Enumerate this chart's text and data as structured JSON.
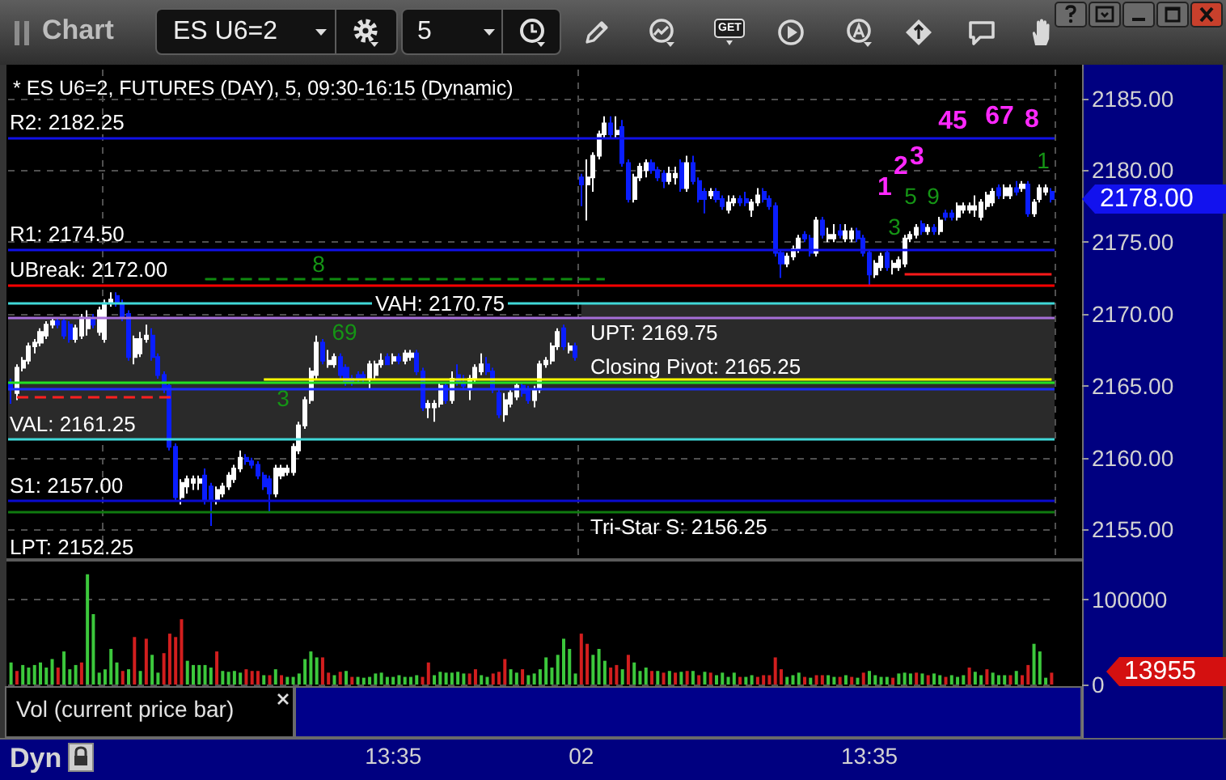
{
  "chart_data": [
    {
      "type": "candlestick",
      "title": "* ES U6=2, FUTURES (DAY), 5, 09:30-16:15 (Dynamic)",
      "categories": [
        null,
        null,
        null,
        null,
        null,
        null,
        null,
        null,
        null,
        null,
        null,
        null,
        null,
        null,
        null,
        null,
        null,
        null,
        null,
        null,
        null,
        null,
        null,
        null,
        null,
        null,
        null,
        null,
        null,
        null,
        null,
        null,
        null,
        null,
        null,
        null,
        null,
        null,
        null,
        null,
        null,
        null,
        null,
        null,
        null,
        null,
        null,
        null,
        null,
        null,
        null,
        null,
        null,
        null,
        null,
        null,
        null,
        null,
        null,
        null,
        null,
        null,
        null,
        null,
        null,
        null,
        null,
        null,
        null,
        null,
        null,
        null,
        null,
        null,
        null,
        null,
        null,
        null,
        null,
        null,
        null,
        null,
        null,
        null,
        null,
        null,
        null,
        null,
        null,
        null,
        null,
        null,
        null,
        null,
        null,
        null,
        null,
        null,
        null,
        null,
        null,
        null,
        null,
        null,
        null,
        null,
        null,
        null,
        null,
        null,
        null,
        null,
        null,
        null,
        null,
        null,
        null,
        null,
        null,
        null,
        null,
        null,
        null,
        null,
        null,
        null,
        null,
        null,
        null,
        null,
        null,
        null,
        null,
        null,
        null,
        null,
        null,
        null,
        null,
        null,
        null,
        null,
        null,
        null,
        null,
        null,
        null,
        null,
        null,
        null,
        null,
        null,
        null,
        null,
        null,
        null,
        null,
        null,
        null,
        null,
        null,
        null,
        null,
        null,
        null,
        null,
        null,
        null,
        null,
        null,
        null,
        null,
        null,
        null,
        null,
        null,
        null,
        null
      ],
      "ohlc": [
        [
          2165.25,
          2165.5,
          2163.75,
          2164.75
        ],
        [
          2164.5,
          2166.5,
          2164,
          2166.25
        ],
        [
          2166.25,
          2167,
          2166,
          2166.75
        ],
        [
          2166.75,
          2168,
          2166.5,
          2167.75
        ],
        [
          2167.75,
          2168.25,
          2167.25,
          2168
        ],
        [
          2168,
          2169,
          2167.75,
          2168.75
        ],
        [
          2168.5,
          2169.5,
          2168.25,
          2169.25
        ],
        [
          2169.25,
          2169.75,
          2169,
          2169.5
        ],
        [
          2169.5,
          2169.75,
          2169,
          2169.25
        ],
        [
          2169.5,
          2169.75,
          2168.25,
          2168.5
        ],
        [
          2169.25,
          2169.5,
          2168,
          2168.25
        ],
        [
          2168.25,
          2169.25,
          2168,
          2169
        ],
        [
          2168.5,
          2170,
          2168.25,
          2169.75
        ],
        [
          2169,
          2170.25,
          2168.5,
          2169.75
        ],
        [
          2169.75,
          2170,
          2169,
          2169.25
        ],
        [
          2168.75,
          2170.5,
          2168.5,
          2170.25
        ],
        [
          2168.25,
          2171,
          2168,
          2170.75
        ],
        [
          2170.75,
          2171.5,
          2170.5,
          2171
        ],
        [
          2171.25,
          2171.5,
          2170.5,
          2170.75
        ],
        [
          2170.75,
          2171,
          2169.5,
          2169.75
        ],
        [
          2170,
          2170.25,
          2166.75,
          2167
        ],
        [
          2167,
          2168.5,
          2166.5,
          2168.25
        ],
        [
          2167.25,
          2168.75,
          2167,
          2168.25
        ],
        [
          2168.25,
          2169.25,
          2168,
          2168.5
        ],
        [
          2168.5,
          2169,
          2166.75,
          2167
        ],
        [
          2167,
          2167.25,
          2165.5,
          2165.75
        ],
        [
          2165.75,
          2166,
          2164.5,
          2164.75
        ],
        [
          2165,
          2165.25,
          2160.5,
          2160.75
        ],
        [
          2160.75,
          2161,
          2157,
          2157.25
        ],
        [
          2157.25,
          2158.5,
          2156.75,
          2158.25
        ],
        [
          2158,
          2158.75,
          2157.5,
          2158.5
        ],
        [
          2158.25,
          2158.75,
          2157.75,
          2158.5
        ],
        [
          2158.25,
          2158.75,
          2157.75,
          2158.5
        ],
        [
          2158.75,
          2159.25,
          2156.75,
          2157
        ],
        [
          2158,
          2158.25,
          2155.25,
          2157
        ],
        [
          2157,
          2158,
          2156.75,
          2157.75
        ],
        [
          2157.5,
          2158.25,
          2157.25,
          2158
        ],
        [
          2158,
          2159,
          2157.75,
          2158.75
        ],
        [
          2158.5,
          2159.5,
          2158.25,
          2159.25
        ],
        [
          2159.25,
          2160.5,
          2159,
          2160
        ],
        [
          2160,
          2160.25,
          2159.5,
          2159.75
        ],
        [
          2159.75,
          2160,
          2159.25,
          2159.5
        ],
        [
          2159.5,
          2159.75,
          2158.5,
          2158.75
        ],
        [
          2158.75,
          2159,
          2157.75,
          2158
        ],
        [
          2158.5,
          2158.75,
          2156.25,
          2157.5
        ],
        [
          2157.5,
          2159.5,
          2157.25,
          2159.25
        ],
        [
          2158.75,
          2159.5,
          2158.5,
          2159.25
        ],
        [
          2159,
          2159.5,
          2158.75,
          2159.25
        ],
        [
          2159,
          2161,
          2158.75,
          2160.75
        ],
        [
          2160.5,
          2162.5,
          2160.25,
          2162.25
        ],
        [
          2162.25,
          2164.25,
          2162,
          2164
        ],
        [
          2164,
          2166.25,
          2163.75,
          2166
        ],
        [
          2165.75,
          2168.5,
          2165.5,
          2168
        ],
        [
          2168,
          2168.25,
          2166.5,
          2166.75
        ],
        [
          2166.5,
          2167.5,
          2166.25,
          2166.75
        ],
        [
          2166.5,
          2167.25,
          2166.25,
          2167
        ],
        [
          2167,
          2167.25,
          2165.5,
          2165.75
        ],
        [
          2166.25,
          2166.5,
          2165,
          2165.25
        ],
        [
          2165.5,
          2165.75,
          2165,
          2165.25
        ],
        [
          2165.75,
          2166,
          2165.25,
          2165.5
        ],
        [
          2165.75,
          2166,
          2165.25,
          2165.5
        ],
        [
          2165.5,
          2166.75,
          2164.75,
          2166.5
        ],
        [
          2165.75,
          2166.75,
          2165.5,
          2166.5
        ],
        [
          2166.5,
          2167.25,
          2166.25,
          2166.75
        ],
        [
          2167,
          2167.25,
          2166.5,
          2166.5
        ],
        [
          2166.75,
          2167.25,
          2166.5,
          2167
        ],
        [
          2167,
          2167.25,
          2166.5,
          2166.75
        ],
        [
          2166.75,
          2167.5,
          2166.5,
          2167.25
        ],
        [
          2167,
          2167.5,
          2166.75,
          2167.25
        ],
        [
          2167.25,
          2167.5,
          2165.75,
          2166
        ],
        [
          2166,
          2166.25,
          2163.25,
          2163.5
        ],
        [
          2163.5,
          2164,
          2162.75,
          2163.75
        ],
        [
          2163.5,
          2164,
          2162.5,
          2163.75
        ],
        [
          2163.75,
          2165.25,
          2163.5,
          2165
        ],
        [
          2165,
          2165.25,
          2163.75,
          2164
        ],
        [
          2164,
          2166,
          2163.75,
          2165.5
        ],
        [
          2165.75,
          2166.5,
          2165,
          2165.25
        ],
        [
          2165.25,
          2165.75,
          2164.75,
          2165
        ],
        [
          2164.75,
          2165.75,
          2164,
          2165.5
        ],
        [
          2165.5,
          2166.5,
          2165.25,
          2166.25
        ],
        [
          2166,
          2167.25,
          2165.75,
          2166.5
        ],
        [
          2166.5,
          2167,
          2165.75,
          2166
        ],
        [
          2166,
          2166.25,
          2164.5,
          2164.75
        ],
        [
          2164.5,
          2164.75,
          2162.75,
          2163
        ],
        [
          2163,
          2164.5,
          2162.5,
          2164
        ],
        [
          2163.75,
          2164.75,
          2163.5,
          2164.5
        ],
        [
          2164.25,
          2165.25,
          2164,
          2165
        ],
        [
          2165,
          2165.25,
          2164.25,
          2164.5
        ],
        [
          2164.75,
          2165,
          2163.75,
          2164
        ],
        [
          2164,
          2165,
          2163.5,
          2164.75
        ],
        [
          2164.75,
          2166.75,
          2164.5,
          2166.5
        ],
        [
          2166.5,
          2167,
          2166.25,
          2166.75
        ],
        [
          2166.75,
          2168,
          2166.5,
          2167.75
        ],
        [
          2167.75,
          2169,
          2167.5,
          2168.75
        ],
        [
          2169,
          2169.25,
          2167.5,
          2167.75
        ],
        [
          2167.5,
          2168,
          2167.25,
          2167.75
        ],
        [
          2167.75,
          2168,
          2166.75,
          2167
        ],
        [
          2179.5,
          2179.75,
          2177.5,
          2179
        ],
        [
          2179,
          2180.75,
          2176.5,
          2179.5
        ],
        [
          2179.5,
          2181.25,
          2178.5,
          2181
        ],
        [
          2181,
          2182.75,
          2180.75,
          2182.5
        ],
        [
          2182.5,
          2183.75,
          2182.25,
          2183.25
        ],
        [
          2183.25,
          2183.75,
          2182.25,
          2182.5
        ],
        [
          2182.5,
          2183.75,
          2182.25,
          2182.75
        ],
        [
          2183,
          2183.5,
          2180.25,
          2180.5
        ],
        [
          2180.5,
          2180.75,
          2177.75,
          2178
        ],
        [
          2178,
          2179.75,
          2177.75,
          2179.5
        ],
        [
          2179.5,
          2180.5,
          2179.25,
          2180.25
        ],
        [
          2180,
          2180.75,
          2179.5,
          2180.5
        ],
        [
          2180.5,
          2180.75,
          2179.75,
          2180
        ],
        [
          2180,
          2180.25,
          2179.25,
          2179.5
        ],
        [
          2179.75,
          2180,
          2178.75,
          2179.25
        ],
        [
          2179.25,
          2180.25,
          2179,
          2179.75
        ],
        [
          2179.5,
          2180.25,
          2179,
          2179.75
        ],
        [
          2180.5,
          2180.75,
          2178.5,
          2178.75
        ],
        [
          2178.75,
          2181,
          2178.5,
          2180.5
        ],
        [
          2180.5,
          2181,
          2179,
          2179.25
        ],
        [
          2179.25,
          2179.5,
          2177.75,
          2178
        ],
        [
          2178.5,
          2178.75,
          2177,
          2178
        ],
        [
          2178.25,
          2178.75,
          2178,
          2178.5
        ],
        [
          2178.5,
          2178.75,
          2177.75,
          2178
        ],
        [
          2178,
          2178.25,
          2177.25,
          2177.5
        ],
        [
          2177.25,
          2178.25,
          2177,
          2177.75
        ],
        [
          2177.75,
          2178.25,
          2177.5,
          2178
        ],
        [
          2178,
          2178.25,
          2177.5,
          2177.75
        ],
        [
          2178,
          2178.5,
          2177.5,
          2177.75
        ],
        [
          2177.25,
          2178,
          2176.75,
          2177.75
        ],
        [
          2177.75,
          2178.75,
          2177.5,
          2178.25
        ],
        [
          2178.5,
          2178.75,
          2177.75,
          2178
        ],
        [
          2178,
          2178.25,
          2177.25,
          2177.5
        ],
        [
          2177.5,
          2177.75,
          2174,
          2174.25
        ],
        [
          2174.25,
          2174.5,
          2172.5,
          2173.5
        ],
        [
          2173.5,
          2174.25,
          2173.25,
          2174
        ],
        [
          2174,
          2174.75,
          2173.75,
          2174.5
        ],
        [
          2174.5,
          2175.5,
          2174.25,
          2175.25
        ],
        [
          2175.5,
          2175.75,
          2175,
          2175.25
        ],
        [
          2175.25,
          2175.5,
          2174,
          2174.25
        ],
        [
          2174.25,
          2176.75,
          2174,
          2176.5
        ],
        [
          2176.5,
          2176.75,
          2175.25,
          2175.5
        ],
        [
          2175.25,
          2176,
          2175,
          2175.5
        ],
        [
          2175.25,
          2176.25,
          2175,
          2175.5
        ],
        [
          2175.75,
          2176.25,
          2175.25,
          2175.5
        ],
        [
          2175.25,
          2176.25,
          2175,
          2175.75
        ],
        [
          2175.25,
          2176,
          2175,
          2175.75
        ],
        [
          2175.75,
          2176,
          2175,
          2175.25
        ],
        [
          2175.25,
          2175.5,
          2174,
          2174.25
        ],
        [
          2174.25,
          2174.5,
          2172,
          2172.75
        ],
        [
          2172.75,
          2173.75,
          2172.5,
          2173.5
        ],
        [
          2173.25,
          2174.25,
          2173,
          2174
        ],
        [
          2174.25,
          2174.5,
          2173,
          2173.25
        ],
        [
          2173.25,
          2173.75,
          2172.75,
          2173.5
        ],
        [
          2173.25,
          2174,
          2173,
          2173.75
        ],
        [
          2173.5,
          2175.5,
          2173.25,
          2175.25
        ],
        [
          2175.25,
          2175.75,
          2175,
          2175.5
        ],
        [
          2175.5,
          2176.25,
          2175.25,
          2176
        ],
        [
          2176.25,
          2176.5,
          2175.5,
          2175.75
        ],
        [
          2175.75,
          2176.25,
          2175.5,
          2176
        ],
        [
          2176,
          2176.25,
          2175.5,
          2175.75
        ],
        [
          2175.75,
          2176.75,
          2175.5,
          2176.5
        ],
        [
          2177,
          2177.25,
          2176.5,
          2176.75
        ],
        [
          2177,
          2177.25,
          2176.5,
          2176.75
        ],
        [
          2176.75,
          2177.75,
          2176.5,
          2177.5
        ],
        [
          2177.25,
          2177.75,
          2177,
          2177.5
        ],
        [
          2177.25,
          2177.75,
          2177,
          2177.5
        ],
        [
          2177.25,
          2178.25,
          2176.75,
          2177.5
        ],
        [
          2176.75,
          2178,
          2176.5,
          2177.75
        ],
        [
          2177.5,
          2178.5,
          2177.25,
          2178.25
        ],
        [
          2177.75,
          2178.75,
          2177.5,
          2178.5
        ],
        [
          2178.75,
          2179,
          2178,
          2178.25
        ],
        [
          2178.25,
          2179,
          2178,
          2178.75
        ],
        [
          2178.25,
          2179,
          2178,
          2178.75
        ],
        [
          2178.75,
          2179.25,
          2178.25,
          2178.5
        ],
        [
          2178.75,
          2179.25,
          2178.5,
          2179
        ],
        [
          2179,
          2179.25,
          2176.75,
          2177
        ],
        [
          2177,
          2178,
          2176.75,
          2177.75
        ],
        [
          2178,
          2179,
          2177.75,
          2178.75
        ],
        [
          2178.5,
          2179,
          2178.25,
          2178.75
        ],
        [
          2178.5,
          2178.75,
          2177.75,
          2178
        ]
      ],
      "colors": [
        "#0a1eff",
        "#ffffff",
        "#ffffff",
        "#ffffff",
        "#ffffff",
        "#ffffff",
        "#ffffff",
        "#ffffff",
        "#0a1eff",
        "#0a1eff",
        "#0a1eff",
        "#ffffff",
        "#ffffff",
        "#ffffff",
        "#0a1eff",
        "#ffffff",
        "#ffffff",
        "#ffffff",
        "#0a1eff",
        "#0a1eff",
        "#0a1eff",
        "#ffffff",
        "#ffffff",
        "#ffffff",
        "#0a1eff",
        "#0a1eff",
        "#0a1eff",
        "#0a1eff",
        "#0a1eff",
        "#ffffff",
        "#ffffff",
        "#ffffff",
        "#ffffff",
        "#0a1eff",
        "#0a1eff",
        "#ffffff",
        "#ffffff",
        "#ffffff",
        "#ffffff",
        "#ffffff",
        "#0a1eff",
        "#0a1eff",
        "#0a1eff",
        "#0a1eff",
        "#0a1eff",
        "#ffffff",
        "#ffffff",
        "#ffffff",
        "#ffffff",
        "#ffffff",
        "#ffffff",
        "#ffffff",
        "#ffffff",
        "#0a1eff",
        "#ffffff",
        "#ffffff",
        "#0a1eff",
        "#0a1eff",
        "#0a1eff",
        "#0a1eff",
        "#0a1eff",
        "#ffffff",
        "#ffffff",
        "#ffffff",
        "#0a1eff",
        "#ffffff",
        "#0a1eff",
        "#ffffff",
        "#ffffff",
        "#0a1eff",
        "#0a1eff",
        "#ffffff",
        "#ffffff",
        "#ffffff",
        "#0a1eff",
        "#ffffff",
        "#0a1eff",
        "#0a1eff",
        "#ffffff",
        "#ffffff",
        "#ffffff",
        "#0a1eff",
        "#0a1eff",
        "#0a1eff",
        "#ffffff",
        "#ffffff",
        "#ffffff",
        "#0a1eff",
        "#0a1eff",
        "#ffffff",
        "#ffffff",
        "#ffffff",
        "#ffffff",
        "#ffffff",
        "#0a1eff",
        "#ffffff",
        "#0a1eff",
        "#0a1eff",
        "#ffffff",
        "#ffffff",
        "#ffffff",
        "#ffffff",
        "#0a1eff",
        "#ffffff",
        "#0a1eff",
        "#0a1eff",
        "#ffffff",
        "#ffffff",
        "#ffffff",
        "#0a1eff",
        "#0a1eff",
        "#0a1eff",
        "#ffffff",
        "#ffffff",
        "#0a1eff",
        "#ffffff",
        "#0a1eff",
        "#0a1eff",
        "#0a1eff",
        "#ffffff",
        "#0a1eff",
        "#0a1eff",
        "#ffffff",
        "#ffffff",
        "#0a1eff",
        "#0a1eff",
        "#ffffff",
        "#ffffff",
        "#0a1eff",
        "#0a1eff",
        "#0a1eff",
        "#0a1eff",
        "#ffffff",
        "#ffffff",
        "#ffffff",
        "#0a1eff",
        "#0a1eff",
        "#ffffff",
        "#0a1eff",
        "#ffffff",
        "#ffffff",
        "#0a1eff",
        "#ffffff",
        "#ffffff",
        "#0a1eff",
        "#0a1eff",
        "#0a1eff",
        "#ffffff",
        "#ffffff",
        "#0a1eff",
        "#ffffff",
        "#ffffff",
        "#ffffff",
        "#ffffff",
        "#ffffff",
        "#0a1eff",
        "#ffffff",
        "#0a1eff",
        "#ffffff",
        "#0a1eff",
        "#0a1eff",
        "#ffffff",
        "#ffffff",
        "#ffffff",
        "#ffffff",
        "#ffffff",
        "#ffffff",
        "#ffffff",
        "#0a1eff",
        "#ffffff",
        "#ffffff",
        "#0a1eff",
        "#ffffff",
        "#0a1eff",
        "#ffffff",
        "#ffffff",
        "#ffffff",
        "#0a1eff"
      ],
      "ylim": [
        2153,
        2187
      ],
      "yticks": [
        {
          "value": 2155,
          "label": "2155.00"
        },
        {
          "value": 2160,
          "label": "2160.00"
        },
        {
          "value": 2165,
          "label": "2165.00"
        },
        {
          "value": 2170,
          "label": "2170.00"
        },
        {
          "value": 2175,
          "label": "2175.00"
        },
        {
          "value": 2180,
          "label": "2180.00"
        },
        {
          "value": 2185,
          "label": "2185.00"
        }
      ],
      "grid": true,
      "tick_labels": "y",
      "ref_lines": [
        {
          "axis": "y",
          "value": 2182.25,
          "label": "R2: 2182.25",
          "color": "#1010e8"
        },
        {
          "axis": "y",
          "value": 2174.5,
          "label": "R1: 2174.50",
          "color": "#1010e8"
        },
        {
          "axis": "y",
          "value": 2172,
          "label": "UBreak: 2172.00",
          "color": "#ff0000"
        },
        {
          "axis": "y",
          "value": 2170.75,
          "label": "VAH: 2170.75",
          "color": "#40d8d8"
        },
        {
          "axis": "y",
          "value": 2169.75,
          "label": "UPT: 2169.75",
          "color": "#a66ed8"
        },
        {
          "axis": "y",
          "value": 2165.25,
          "label": "Closing Pivot: 2165.25",
          "color": "#22e022"
        },
        {
          "axis": "y",
          "value": 2161.25,
          "label": "VAL: 2161.25",
          "color": "#40d8d8"
        },
        {
          "axis": "y",
          "value": 2157,
          "label": "S1: 2157.00",
          "color": "#0a0ad0"
        },
        {
          "axis": "y",
          "value": 2156.25,
          "label": "Tri-Star S: 2156.25",
          "color": "#0f7a0f"
        },
        {
          "axis": "y",
          "value": 2172.5,
          "color": "#0f8a0f",
          "line_style": "dashed"
        },
        {
          "axis": "y",
          "value": 2172.75,
          "color": "#ff1a1a"
        },
        {
          "axis": "y",
          "value": 2165.5,
          "color": "#ffff00"
        },
        {
          "axis": "y",
          "value": 2164.75,
          "color": "#1a2cff"
        },
        {
          "axis": "y",
          "value": 2164.25,
          "color": "#ff2020",
          "line_style": "dashed"
        }
      ],
      "bands": [
        {
          "axis": "y",
          "from": 2161.25,
          "to": 2169.75,
          "color": "#2a2a2a"
        },
        {
          "axis": "y",
          "from": 2169.75,
          "to": 2170.75,
          "color": "#2a2a2a"
        }
      ],
      "annotations": [
        "Chart",
        "ES U6=2",
        "5",
        "GET",
        "2178.00",
        "LPT: 2152.25",
        "1",
        "2",
        "3",
        "45",
        "67",
        "8",
        "1",
        "3",
        "5",
        "9",
        "8",
        "69",
        "3"
      ]
    },
    {
      "type": "bar",
      "title": "Vol (current price bar)",
      "categories": [
        null,
        null,
        null,
        null,
        null,
        null,
        null,
        null,
        null,
        null,
        null,
        null,
        null,
        null,
        null,
        null,
        null,
        null,
        null,
        null,
        null,
        null,
        null,
        null,
        null,
        null,
        null,
        null,
        null,
        null,
        null,
        null,
        null,
        null,
        null,
        null,
        null,
        null,
        null,
        null,
        null,
        null,
        null,
        null,
        null,
        null,
        null,
        null,
        null,
        null,
        null,
        null,
        null,
        null,
        null,
        null,
        null,
        null,
        null,
        null,
        null,
        null,
        null,
        null,
        null,
        "13:35",
        null,
        null,
        null,
        null,
        null,
        null,
        null,
        null,
        null,
        null,
        null,
        null,
        null,
        null,
        null,
        null,
        null,
        null,
        null,
        null,
        null,
        null,
        null,
        null,
        null,
        null,
        null,
        null,
        null,
        null,
        null,
        "02",
        null,
        null,
        null,
        null,
        null,
        null,
        null,
        null,
        null,
        null,
        null,
        null,
        null,
        null,
        null,
        null,
        null,
        null,
        null,
        null,
        null,
        null,
        null,
        null,
        null,
        null,
        null,
        null,
        null,
        null,
        null,
        null,
        null,
        null,
        null,
        null,
        null,
        null,
        null,
        null,
        null,
        null,
        null,
        null,
        null,
        null,
        null,
        null,
        "13:35",
        null,
        null,
        null,
        null,
        null,
        null,
        null,
        null,
        null,
        null,
        null,
        null,
        null,
        null,
        null,
        null,
        null,
        null,
        null,
        null,
        null,
        null,
        null,
        null,
        null,
        null,
        null,
        null,
        null,
        null,
        null
      ],
      "values": [
        26000,
        16000,
        23000,
        20000,
        23000,
        26000,
        20000,
        30000,
        20000,
        39000,
        18000,
        23000,
        26000,
        130000,
        83000,
        14000,
        18000,
        42000,
        26000,
        16000,
        18000,
        56000,
        16000,
        54000,
        35000,
        14000,
        37000,
        60000,
        56000,
        77000,
        28000,
        23000,
        23000,
        23000,
        20000,
        39000,
        16000,
        15000,
        16000,
        14000,
        18000,
        16000,
        16000,
        11000,
        11000,
        18000,
        11000,
        9000,
        9000,
        13000,
        30000,
        39000,
        32000,
        32000,
        14000,
        11000,
        15000,
        16000,
        9000,
        9000,
        8000,
        9000,
        13000,
        14000,
        9000,
        9000,
        11000,
        9000,
        9000,
        11000,
        9000,
        26000,
        11000,
        15000,
        14000,
        14000,
        15000,
        13000,
        13000,
        18000,
        11000,
        9000,
        13000,
        15000,
        30000,
        18000,
        14000,
        18000,
        11000,
        13000,
        18000,
        32000,
        20000,
        35000,
        54000,
        42000,
        13000,
        60000,
        48000,
        35000,
        42000,
        28000,
        20000,
        23000,
        18000,
        35000,
        26000,
        16000,
        20000,
        16000,
        16000,
        14000,
        16000,
        14000,
        15000,
        16000,
        16000,
        11000,
        15000,
        14000,
        11000,
        14000,
        9000,
        14000,
        9000,
        9000,
        11000,
        9000,
        11000,
        11000,
        32000,
        18000,
        9000,
        11000,
        14000,
        9000,
        8000,
        11000,
        11000,
        11000,
        9000,
        9000,
        11000,
        9000,
        8000,
        14000,
        16000,
        11000,
        9000,
        9000,
        8000,
        13000,
        14000,
        13000,
        14000,
        13000,
        11000,
        13000,
        11000,
        9000,
        11000,
        9000,
        11000,
        20000,
        15000,
        11000,
        18000,
        14000,
        11000,
        11000,
        11000,
        16000,
        11000,
        23000,
        48000,
        39000,
        8000,
        13955
      ],
      "colors": [
        "#3cc83c",
        "#d21e1e",
        "#3cc83c",
        "#3cc83c",
        "#3cc83c",
        "#3cc83c",
        "#3cc83c",
        "#3cc83c",
        "#d21e1e",
        "#3cc83c",
        "#3cc83c",
        "#3cc83c",
        "#d21e1e",
        "#3cc83c",
        "#3cc83c",
        "#3cc83c",
        "#3cc83c",
        "#3cc83c",
        "#3cc83c",
        "#d21e1e",
        "#3cc83c",
        "#d21e1e",
        "#3cc83c",
        "#d21e1e",
        "#3cc83c",
        "#3cc83c",
        "#d21e1e",
        "#d21e1e",
        "#d21e1e",
        "#d21e1e",
        "#3cc83c",
        "#3cc83c",
        "#3cc83c",
        "#3cc83c",
        "#3cc83c",
        "#d21e1e",
        "#3cc83c",
        "#3cc83c",
        "#3cc83c",
        "#3cc83c",
        "#d21e1e",
        "#d21e1e",
        "#d21e1e",
        "#3cc83c",
        "#d21e1e",
        "#3cc83c",
        "#d21e1e",
        "#3cc83c",
        "#3cc83c",
        "#3cc83c",
        "#3cc83c",
        "#3cc83c",
        "#3cc83c",
        "#d21e1e",
        "#d21e1e",
        "#3cc83c",
        "#d21e1e",
        "#3cc83c",
        "#d21e1e",
        "#3cc83c",
        "#3cc83c",
        "#3cc83c",
        "#3cc83c",
        "#3cc83c",
        "#3cc83c",
        "#3cc83c",
        "#3cc83c",
        "#3cc83c",
        "#3cc83c",
        "#3cc83c",
        "#d21e1e",
        "#d21e1e",
        "#3cc83c",
        "#3cc83c",
        "#3cc83c",
        "#3cc83c",
        "#3cc83c",
        "#3cc83c",
        "#d21e1e",
        "#d21e1e",
        "#3cc83c",
        "#3cc83c",
        "#d21e1e",
        "#d21e1e",
        "#d21e1e",
        "#3cc83c",
        "#3cc83c",
        "#d21e1e",
        "#3cc83c",
        "#3cc83c",
        "#3cc83c",
        "#3cc83c",
        "#3cc83c",
        "#3cc83c",
        "#3cc83c",
        "#3cc83c",
        "#3cc83c",
        "#d21e1e",
        "#d21e1e",
        "#3cc83c",
        "#3cc83c",
        "#3cc83c",
        "#d21e1e",
        "#d21e1e",
        "#3cc83c",
        "#d21e1e",
        "#3cc83c",
        "#3cc83c",
        "#3cc83c",
        "#d21e1e",
        "#3cc83c",
        "#d21e1e",
        "#3cc83c",
        "#d21e1e",
        "#3cc83c",
        "#d21e1e",
        "#3cc83c",
        "#d21e1e",
        "#3cc83c",
        "#d21e1e",
        "#3cc83c",
        "#3cc83c",
        "#3cc83c",
        "#3cc83c",
        "#d21e1e",
        "#3cc83c",
        "#3cc83c",
        "#d21e1e",
        "#d21e1e",
        "#d21e1e",
        "#d21e1e",
        "#d21e1e",
        "#3cc83c",
        "#3cc83c",
        "#3cc83c",
        "#d21e1e",
        "#3cc83c",
        "#d21e1e",
        "#d21e1e",
        "#3cc83c",
        "#3cc83c",
        "#d21e1e",
        "#3cc83c",
        "#d21e1e",
        "#3cc83c",
        "#d21e1e",
        "#3cc83c",
        "#3cc83c",
        "#3cc83c",
        "#3cc83c",
        "#d21e1e",
        "#3cc83c",
        "#3cc83c",
        "#3cc83c",
        "#d21e1e",
        "#3cc83c",
        "#d21e1e",
        "#3cc83c",
        "#3cc83c",
        "#d21e1e",
        "#3cc83c",
        "#3cc83c",
        "#3cc83c",
        "#d21e1e",
        "#3cc83c",
        "#3cc83c",
        "#d21e1e",
        "#3cc83c",
        "#3cc83c",
        "#3cc83c",
        "#d21e1e",
        "#3cc83c",
        "#d21e1e",
        "#d21e1e",
        "#3cc83c",
        "#3cc83c",
        "#3cc83c",
        "#d21e1e"
      ],
      "ylim": [
        0,
        145000
      ],
      "yticks": [
        0,
        100000
      ],
      "grid": "y",
      "annotations": [
        "13955",
        "Dyn"
      ]
    }
  ]
}
